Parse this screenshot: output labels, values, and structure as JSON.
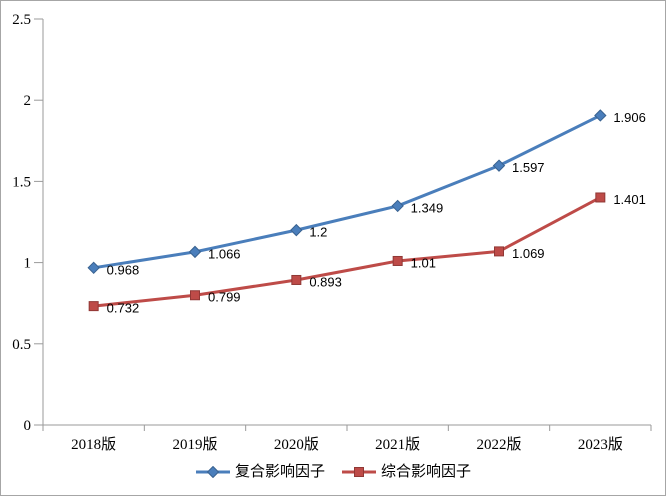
{
  "chart_data": {
    "type": "line",
    "title": "",
    "xlabel": "",
    "ylabel": "",
    "categories": [
      "2018版",
      "2019版",
      "2020版",
      "2021版",
      "2022版",
      "2023版"
    ],
    "series": [
      {
        "name": "复合影响因子",
        "values": [
          0.968,
          1.066,
          1.2,
          1.349,
          1.597,
          1.906
        ],
        "color": "#4A7EBB",
        "edge_color": "#38618F",
        "marker": "diamond"
      },
      {
        "name": "综合影响因子",
        "values": [
          0.732,
          0.799,
          0.893,
          1.01,
          1.069,
          1.401
        ],
        "color": "#BE4B48",
        "edge_color": "#903835",
        "marker": "square"
      }
    ],
    "data_labels": [
      [
        "0.968",
        "1.066",
        "1.2",
        "1.349",
        "1.597",
        "1.906"
      ],
      [
        "0.732",
        "0.799",
        "0.893",
        "1.01",
        "1.069",
        "1.401"
      ]
    ],
    "y_ticks": [
      "0",
      "0.5",
      "1",
      "1.5",
      "2",
      "2.5"
    ],
    "ylim": [
      0,
      2.5
    ],
    "grid": "off",
    "legend_position": "bottom"
  },
  "colors": {
    "axis": "#9a9a9a",
    "text": "#000000",
    "frame_border": "#a6a6a6",
    "background": "#ffffff"
  }
}
